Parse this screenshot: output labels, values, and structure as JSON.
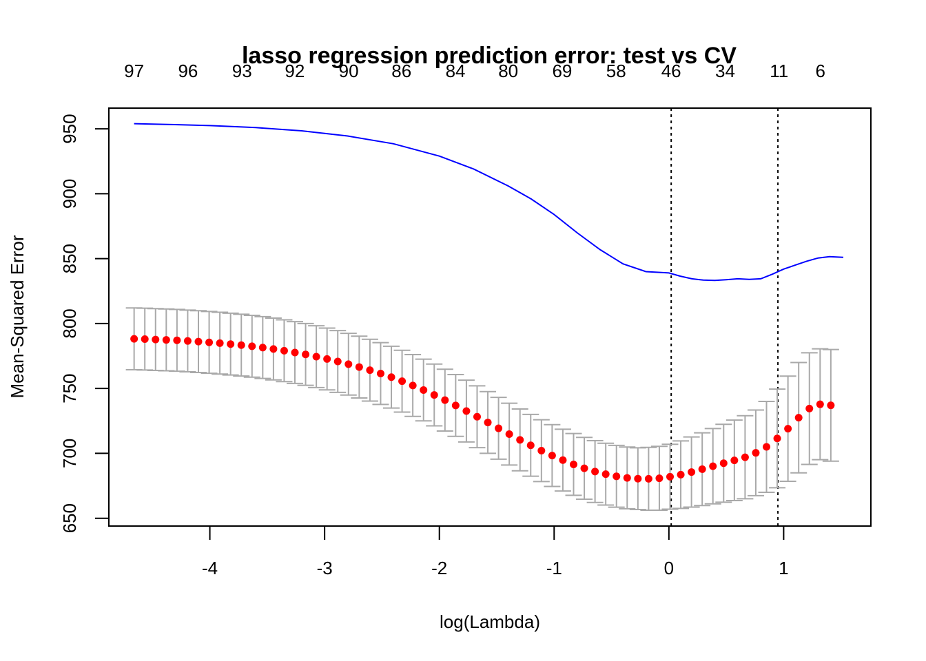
{
  "chart_data": {
    "type": "scatter",
    "title": "lasso regression prediction error: test vs CV",
    "xlabel": "log(Lambda)",
    "ylabel": "Mean-Squared Error",
    "xlim": [
      -4.88,
      1.76
    ],
    "ylim": [
      644,
      966
    ],
    "x_ticks": [
      -4,
      -3,
      -2,
      -1,
      0,
      1
    ],
    "x_tick_labels": [
      "-4",
      "-3",
      "-2",
      "-1",
      "0",
      "1"
    ],
    "y_ticks": [
      650,
      700,
      750,
      800,
      850,
      900,
      950
    ],
    "y_tick_labels": [
      "650",
      "700",
      "750",
      "800",
      "850",
      "900",
      "950"
    ],
    "top_axis": {
      "positions": [
        -4.66,
        -4.19,
        -3.72,
        -3.26,
        -2.79,
        -2.33,
        -1.86,
        -1.4,
        -0.93,
        -0.46,
        0.02,
        0.49,
        0.96,
        1.32
      ],
      "labels": [
        "97",
        "96",
        "93",
        "92",
        "90",
        "86",
        "84",
        "80",
        "69",
        "58",
        "46",
        "34",
        "11",
        "6"
      ]
    },
    "vlines": [
      0.02,
      0.95
    ],
    "grid": false,
    "legend": "none",
    "series": [
      {
        "kind": "cv_points_with_error_bars",
        "color": "#ff0000",
        "errorbar_color": "#a9a9a9",
        "x_start": -4.66,
        "x_step": 0.0934,
        "mean": [
          788.2,
          788.0,
          787.7,
          787.4,
          787.1,
          786.6,
          786.1,
          785.5,
          784.9,
          784.2,
          783.4,
          782.5,
          781.5,
          780.4,
          779.1,
          777.7,
          776.2,
          774.5,
          772.7,
          770.8,
          768.7,
          766.5,
          764.1,
          761.5,
          758.7,
          755.6,
          752.3,
          748.8,
          745.0,
          741.0,
          736.9,
          732.6,
          728.2,
          723.8,
          719.3,
          714.8,
          710.4,
          706.2,
          702.1,
          698.3,
          694.8,
          691.5,
          688.5,
          686.0,
          684.0,
          682.3,
          681.1,
          680.5,
          680.4,
          680.8,
          682.0,
          683.6,
          685.6,
          687.8,
          690.1,
          692.4,
          694.6,
          697.0,
          700.4,
          705.0,
          711.5,
          719.0,
          727.5,
          734.5,
          737.8,
          737.0
        ],
        "upper": [
          812.0,
          811.8,
          811.5,
          811.2,
          810.9,
          810.4,
          809.9,
          809.3,
          808.7,
          808.0,
          807.2,
          806.3,
          805.3,
          804.2,
          802.9,
          801.5,
          800.0,
          798.3,
          796.5,
          794.6,
          792.5,
          790.3,
          787.9,
          785.3,
          782.5,
          779.4,
          776.1,
          772.6,
          768.8,
          764.8,
          760.7,
          756.4,
          752.0,
          747.6,
          743.1,
          738.6,
          734.2,
          730.0,
          725.9,
          722.1,
          718.6,
          715.3,
          712.3,
          709.8,
          707.8,
          706.1,
          704.9,
          704.3,
          704.6,
          705.4,
          707.0,
          709.6,
          712.6,
          715.8,
          719.1,
          722.4,
          725.6,
          729.0,
          733.4,
          740.0,
          749.5,
          759.5,
          770.0,
          777.5,
          780.5,
          780.0
        ],
        "lower": [
          764.4,
          764.2,
          763.9,
          763.6,
          763.3,
          762.8,
          762.3,
          761.7,
          761.1,
          760.4,
          759.6,
          758.7,
          757.7,
          756.6,
          755.3,
          753.9,
          752.4,
          750.7,
          748.9,
          747.0,
          744.9,
          742.7,
          740.3,
          737.7,
          734.9,
          731.8,
          728.5,
          725.0,
          721.2,
          717.2,
          713.1,
          708.8,
          704.4,
          700.0,
          695.5,
          691.0,
          686.6,
          682.4,
          678.3,
          674.5,
          671.0,
          667.7,
          664.7,
          662.2,
          660.2,
          658.5,
          657.3,
          656.7,
          656.2,
          656.2,
          657.0,
          657.6,
          658.6,
          659.8,
          661.1,
          662.4,
          663.6,
          665.0,
          667.4,
          670.0,
          673.5,
          678.5,
          685.0,
          691.5,
          695.1,
          694.0
        ]
      },
      {
        "kind": "test_error_line",
        "color": "#0000ff",
        "x": [
          -4.66,
          -4.4,
          -4.0,
          -3.6,
          -3.2,
          -2.8,
          -2.4,
          -2.0,
          -1.7,
          -1.4,
          -1.2,
          -1.0,
          -0.8,
          -0.6,
          -0.4,
          -0.2,
          0.0,
          0.1,
          0.2,
          0.3,
          0.4,
          0.5,
          0.6,
          0.7,
          0.8,
          0.9,
          1.0,
          1.1,
          1.2,
          1.3,
          1.4,
          1.52
        ],
        "y": [
          954,
          953.5,
          952.5,
          951,
          948.5,
          944.5,
          938.5,
          929,
          919,
          906,
          896,
          884,
          870,
          857,
          846,
          840,
          839,
          836.5,
          834.5,
          833.5,
          833.3,
          833.8,
          834.5,
          834,
          834.5,
          838,
          842,
          845,
          848,
          850.5,
          851.5,
          851
        ]
      }
    ]
  }
}
